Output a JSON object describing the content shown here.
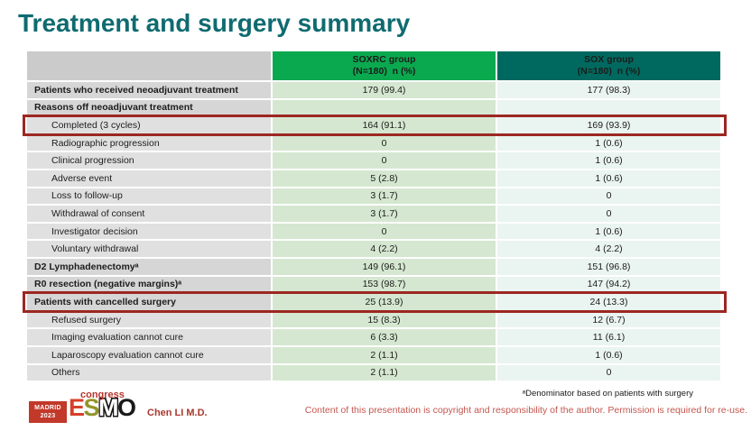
{
  "title": "Treatment and surgery summary",
  "table": {
    "columns": [
      {
        "name": "SOXRC group",
        "sub": "(N=180)  n (%)"
      },
      {
        "name": "SOX group",
        "sub": "(N=180)  n (%)"
      }
    ],
    "rows": [
      {
        "label": "Patients who received neoadjuvant treatment",
        "soxrc": "179 (99.4)",
        "sox": "177 (98.3)",
        "bold": true
      },
      {
        "label": "Reasons off neoadjuvant treatment",
        "soxrc": "",
        "sox": "",
        "bold": true
      },
      {
        "label": "Completed (3 cycles)",
        "soxrc": "164 (91.1)",
        "sox": "169 (93.9)",
        "indent": true,
        "highlight": true
      },
      {
        "label": "Radiographic progression",
        "soxrc": "0",
        "sox": "1 (0.6)",
        "indent": true
      },
      {
        "label": "Clinical progression",
        "soxrc": "0",
        "sox": "1 (0.6)",
        "indent": true
      },
      {
        "label": "Adverse event",
        "soxrc": "5 (2.8)",
        "sox": "1 (0.6)",
        "indent": true
      },
      {
        "label": "Loss to follow-up",
        "soxrc": "3 (1.7)",
        "sox": "0",
        "indent": true
      },
      {
        "label": "Withdrawal of consent",
        "soxrc": "3 (1.7)",
        "sox": "0",
        "indent": true
      },
      {
        "label": "Investigator decision",
        "soxrc": "0",
        "sox": "1 (0.6)",
        "indent": true
      },
      {
        "label": "Voluntary withdrawal",
        "soxrc": "4 (2.2)",
        "sox": "4 (2.2)",
        "indent": true
      },
      {
        "label": "D2 Lymphadenectomyᵃ",
        "soxrc": "149 (96.1)",
        "sox": "151 (96.8)",
        "bold": true
      },
      {
        "label": "R0 resection (negative margins)ᵃ",
        "soxrc": "153 (98.7)",
        "sox": "147 (94.2)",
        "bold": true
      },
      {
        "label": "Patients with cancelled surgery",
        "soxrc": "25 (13.9)",
        "sox": "24 (13.3)",
        "bold": true,
        "highlight": true
      },
      {
        "label": "Refused surgery",
        "soxrc": "15 (8.3)",
        "sox": "12 (6.7)",
        "indent": true
      },
      {
        "label": "Imaging evaluation cannot cure",
        "soxrc": "6 (3.3)",
        "sox": "11 (6.1)",
        "indent": true
      },
      {
        "label": "Laparoscopy evaluation cannot cure",
        "soxrc": "2 (1.1)",
        "sox": "1 (0.6)",
        "indent": true
      },
      {
        "label": "Others",
        "soxrc": "2 (1.1)",
        "sox": "0",
        "indent": true
      }
    ]
  },
  "footer": {
    "logo": {
      "madrid_line1": "MADRID",
      "madrid_line2": "2023",
      "esmo_letters": [
        {
          "ch": "E",
          "color": "#d6402a"
        },
        {
          "ch": "S",
          "color": "#94952b"
        },
        {
          "ch": "M",
          "color": "outline"
        },
        {
          "ch": "O",
          "color": "#1a1a1a"
        }
      ],
      "congress": "congress"
    },
    "author": "Chen LI M.D.",
    "footnote": "ᵃDenominator based on patients with surgery",
    "copyright": "Content of this presentation is copyright and responsibility of the author. Permission is required for re-use."
  },
  "colors": {
    "title": "#0f6b70",
    "header_soxrc": "#0aa94f",
    "header_sox": "#00695f",
    "soxrc_cell": "#d5e7d0",
    "sox_cell": "#eaf4f0",
    "highlight_border": "#9c2722",
    "author_text": "#a8392e",
    "copyright_text": "#c4574f"
  }
}
